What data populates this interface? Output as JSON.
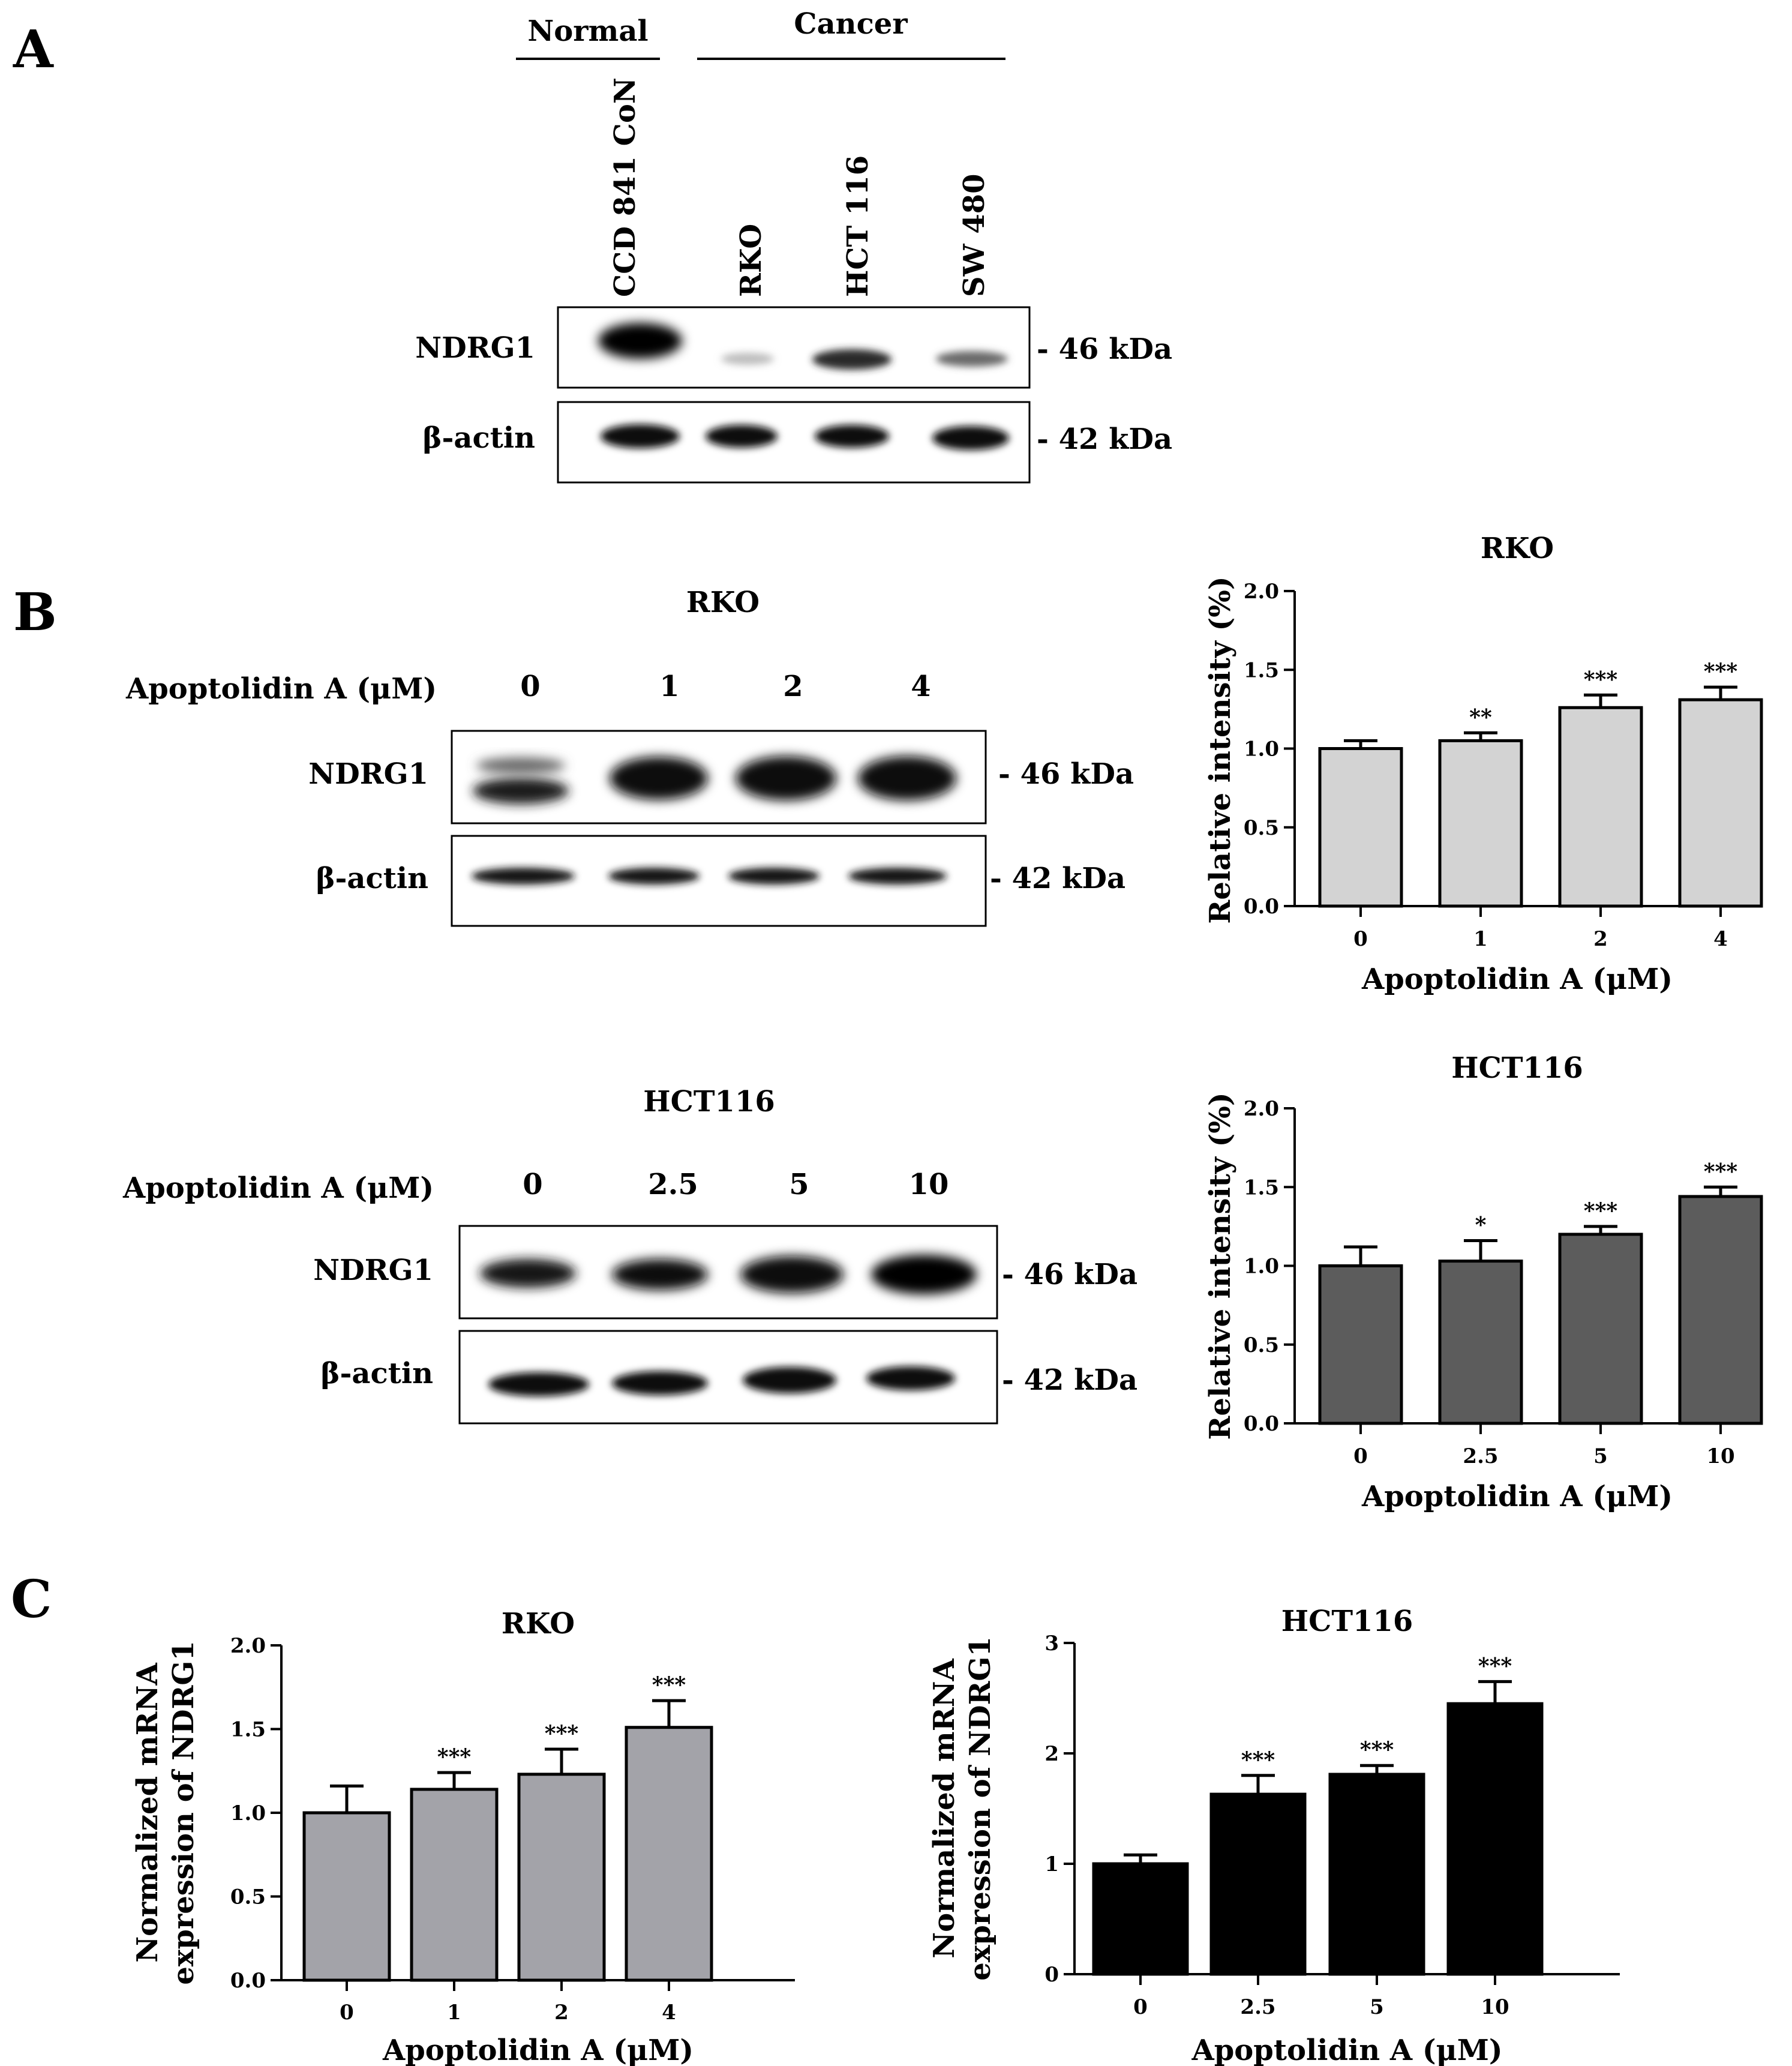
{
  "panel_a": {
    "letter": "A",
    "group_normal": "Normal",
    "group_cancer": "Cancer",
    "lanes": [
      "CCD 841 CoN",
      "RKO",
      "HCT 116",
      "SW 480"
    ],
    "rows": [
      "NDRG1",
      "β-actin"
    ],
    "markers": [
      "- 46 kDa",
      "- 42 kDa"
    ]
  },
  "panel_b": {
    "letter": "B",
    "blot_rko": {
      "title": "RKO",
      "treatment_label": "Apoptolidin A (μM)",
      "doses": [
        "0",
        "1",
        "2",
        "4"
      ],
      "rows": [
        "NDRG1",
        "β-actin"
      ],
      "markers": [
        "- 46 kDa",
        "- 42 kDa"
      ]
    },
    "blot_hct": {
      "title": "HCT116",
      "treatment_label": "Apoptolidin A (μM)",
      "doses": [
        "0",
        "2.5",
        "5",
        "10"
      ],
      "rows": [
        "NDRG1",
        "β-actin"
      ],
      "markers": [
        "- 46 kDa",
        "- 42 kDa"
      ]
    }
  },
  "panel_c": {
    "letter": "C"
  },
  "chart_data": [
    {
      "id": "b_rko",
      "type": "bar",
      "title": "RKO",
      "xlabel": "Apoptolidin A (μM)",
      "ylabel": "Relative intensity (%)",
      "categories": [
        "0",
        "1",
        "2",
        "4"
      ],
      "values": [
        1.0,
        1.05,
        1.26,
        1.31
      ],
      "errors": [
        0.05,
        0.05,
        0.08,
        0.08
      ],
      "significance": [
        "",
        "**",
        "***",
        "***"
      ],
      "ylim": [
        0,
        2.0
      ],
      "yticks": [
        "0.0",
        "0.5",
        "1.0",
        "1.5",
        "2.0"
      ],
      "bar_color": "#d3d3d3"
    },
    {
      "id": "b_hct",
      "type": "bar",
      "title": "HCT116",
      "xlabel": "Apoptolidin A (μM)",
      "ylabel": "Relative intensity (%)",
      "categories": [
        "0",
        "2.5",
        "5",
        "10"
      ],
      "values": [
        1.0,
        1.03,
        1.2,
        1.44
      ],
      "errors": [
        0.12,
        0.13,
        0.05,
        0.06
      ],
      "significance": [
        "",
        "*",
        "***",
        "***"
      ],
      "ylim": [
        0,
        2.0
      ],
      "yticks": [
        "0.0",
        "0.5",
        "1.0",
        "1.5",
        "2.0"
      ],
      "bar_color": "#5c5c5c"
    },
    {
      "id": "c_rko",
      "type": "bar",
      "title": "RKO",
      "xlabel": "Apoptolidin A (μM)",
      "ylabel": [
        "Normalized mRNA",
        "expression of NDRG1"
      ],
      "categories": [
        "0",
        "1",
        "2",
        "4"
      ],
      "values": [
        1.0,
        1.14,
        1.23,
        1.51
      ],
      "errors": [
        0.16,
        0.1,
        0.15,
        0.16
      ],
      "significance": [
        "",
        "***",
        "***",
        "***"
      ],
      "ylim": [
        0,
        2.0
      ],
      "yticks": [
        "0.0",
        "0.5",
        "1.0",
        "1.5",
        "2.0"
      ],
      "bar_color": "#a3a3a9"
    },
    {
      "id": "c_hct",
      "type": "bar",
      "title": "HCT116",
      "xlabel": "Apoptolidin A (μM)",
      "ylabel": [
        "Normalized mRNA",
        "expression of NDRG1"
      ],
      "categories": [
        "0",
        "2.5",
        "5",
        "10"
      ],
      "values": [
        1.0,
        1.63,
        1.81,
        2.45
      ],
      "errors": [
        0.08,
        0.17,
        0.08,
        0.2
      ],
      "significance": [
        "",
        "***",
        "***",
        "***"
      ],
      "ylim": [
        0,
        3
      ],
      "yticks": [
        "0",
        "1",
        "2",
        "3"
      ],
      "bar_color": "#000000"
    }
  ]
}
